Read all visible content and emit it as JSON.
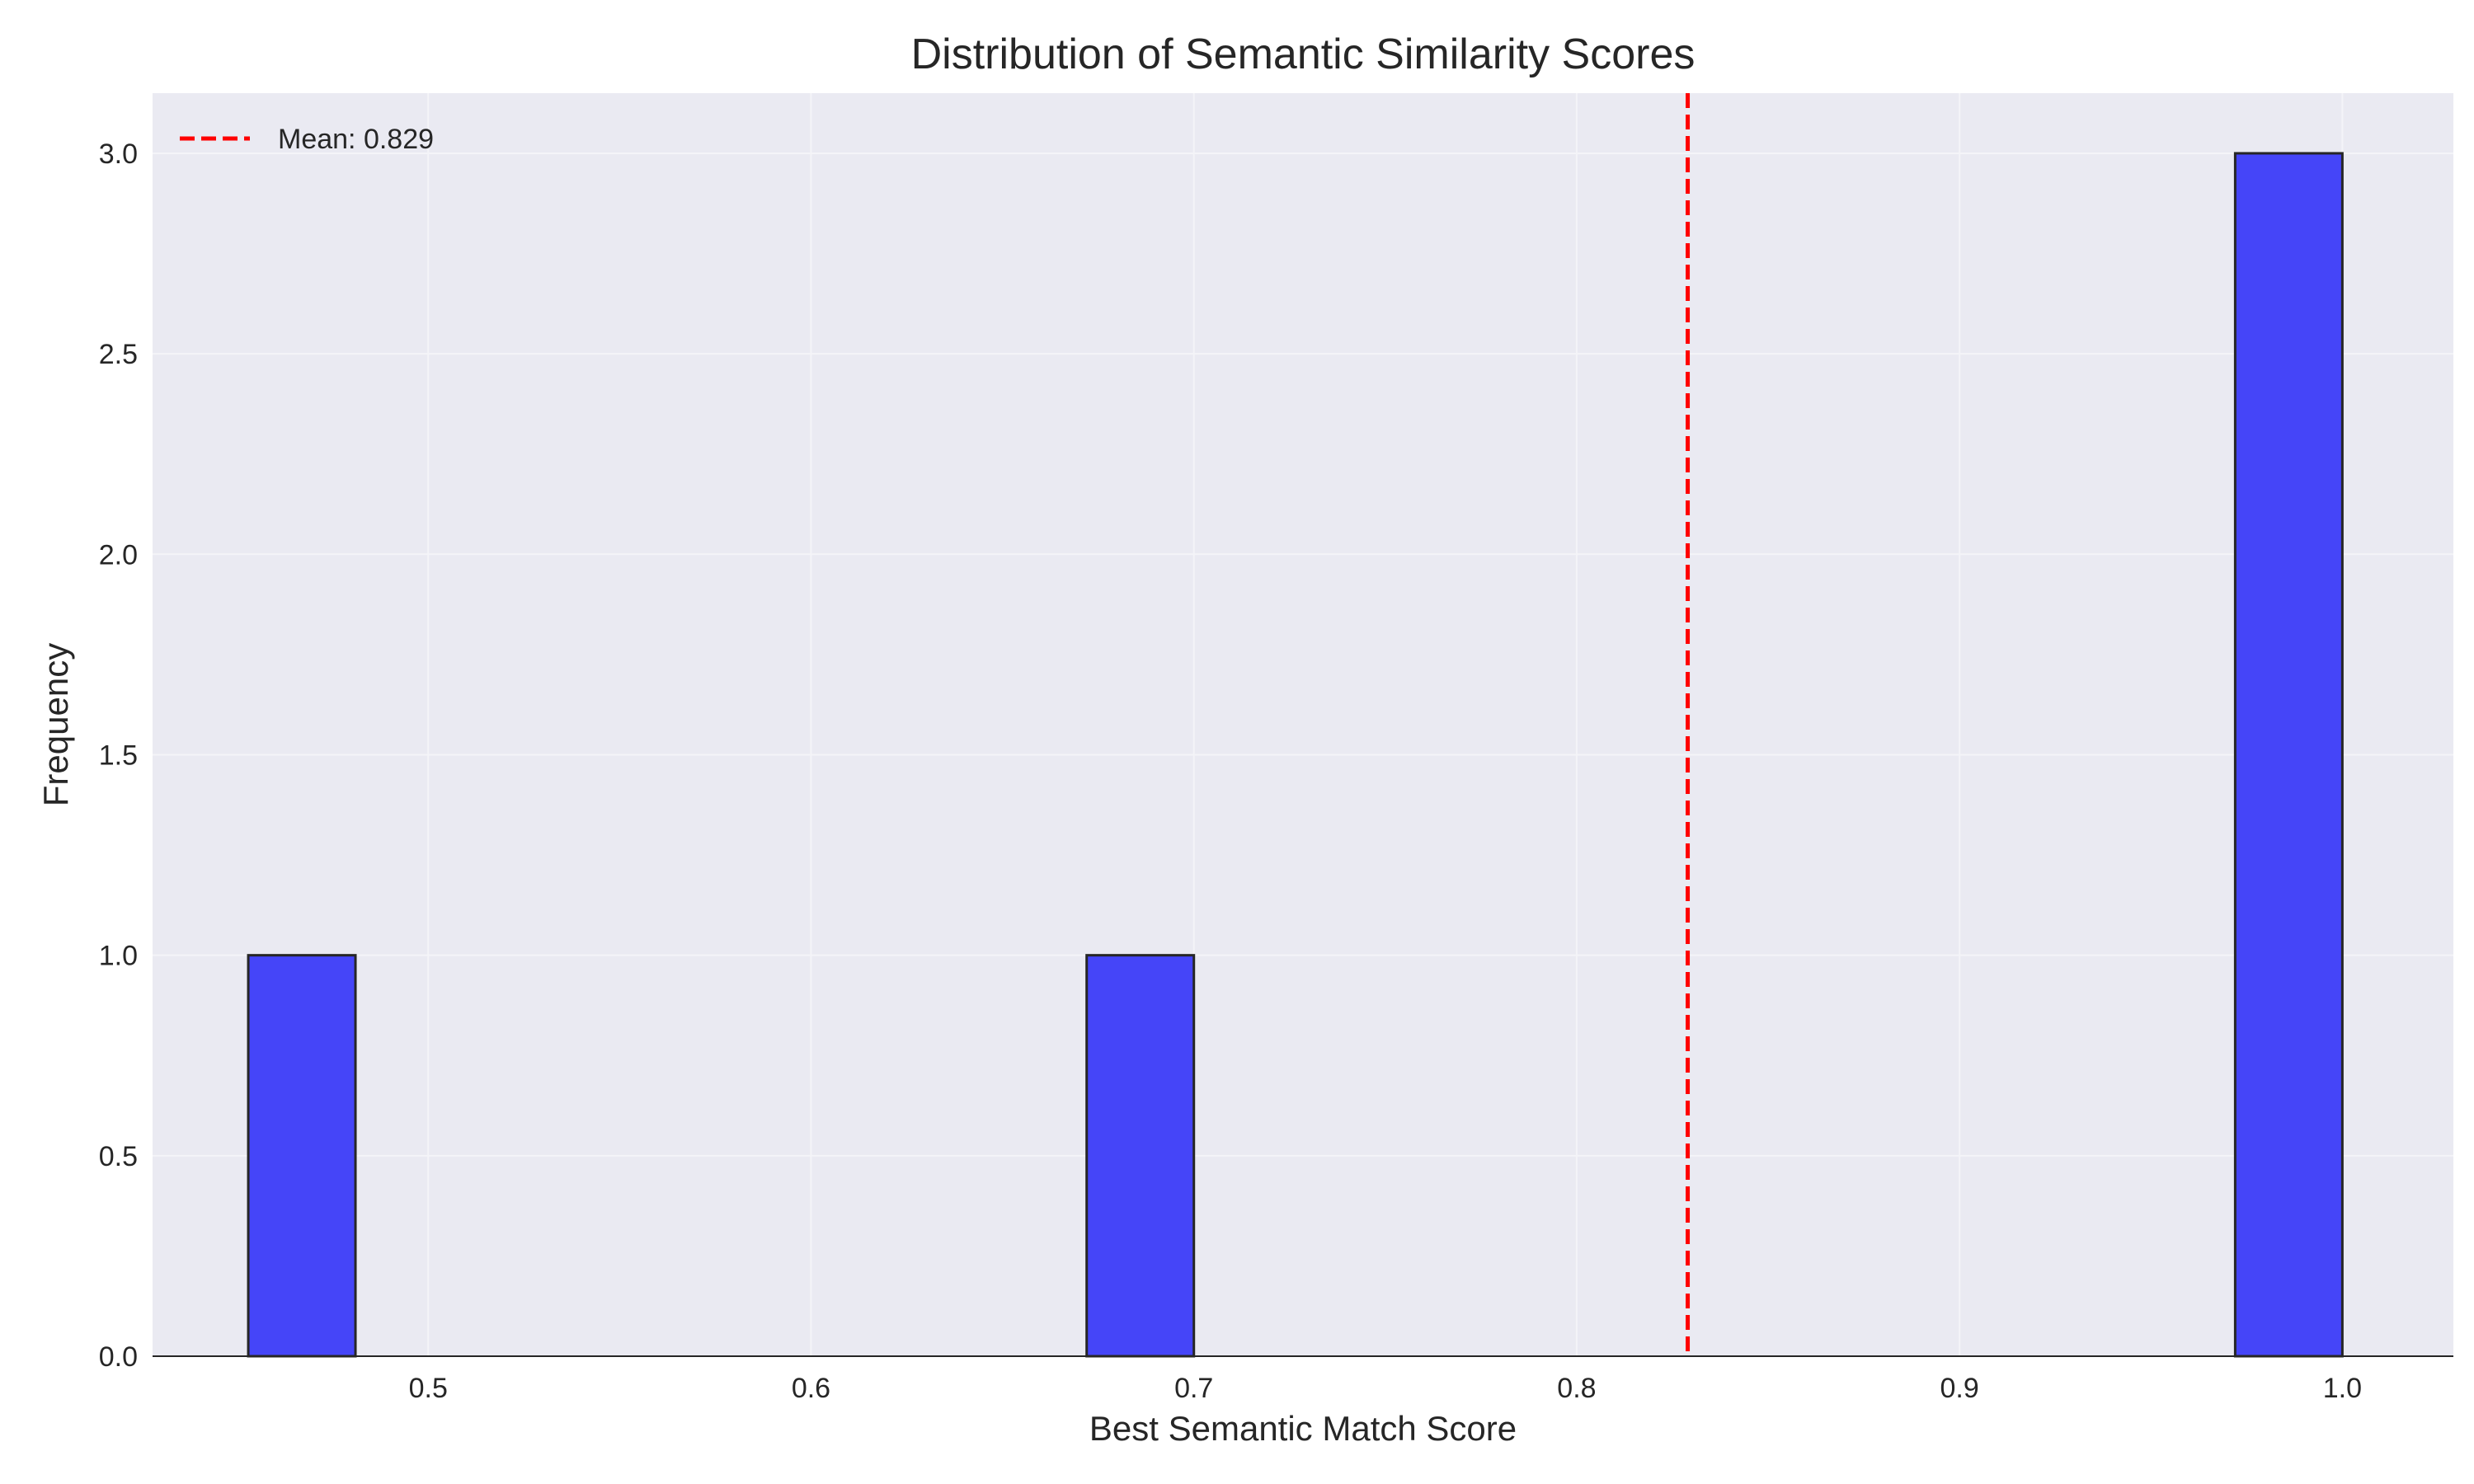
{
  "chart_data": {
    "type": "bar",
    "title": "Distribution of Semantic Similarity Scores",
    "xlabel": "Best Semantic Match Score",
    "ylabel": "Frequency",
    "xlim": [
      0.428,
      1.029
    ],
    "ylim": [
      0,
      3.15
    ],
    "xticks": [
      0.5,
      0.6,
      0.7,
      0.8,
      0.9,
      1.0
    ],
    "xtick_labels": [
      "0.5",
      "0.6",
      "0.7",
      "0.8",
      "0.9",
      "1.0"
    ],
    "yticks": [
      0.0,
      0.5,
      1.0,
      1.5,
      2.0,
      2.5,
      3.0
    ],
    "ytick_labels": [
      "0.0",
      "0.5",
      "1.0",
      "1.5",
      "2.0",
      "2.5",
      "3.0"
    ],
    "bins": [
      {
        "x0": 0.453,
        "x1": 0.481,
        "count": 1
      },
      {
        "x0": 0.672,
        "x1": 0.7,
        "count": 1
      },
      {
        "x0": 0.972,
        "x1": 1.0,
        "count": 3
      }
    ],
    "mean_line": {
      "value": 0.829,
      "label": "Mean: 0.829",
      "color": "#ff0000"
    },
    "bar_color": "#4545f8",
    "bar_edge_color": "#262626",
    "grid": true,
    "legend_position": "top-left"
  }
}
